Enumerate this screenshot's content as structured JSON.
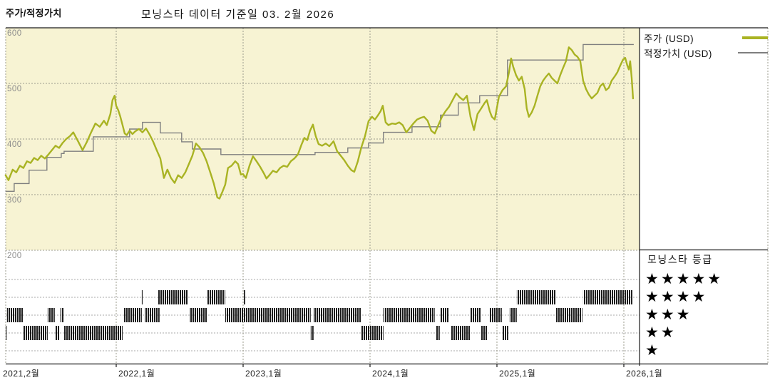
{
  "page": {
    "title_left": "주가/적정가치",
    "title_center": "모닝스타 데이터 기준일 03. 2월 2026"
  },
  "legend": {
    "items": [
      {
        "label": "주가 (USD)",
        "color": "#a9b323",
        "thickness": 4,
        "width": 36
      },
      {
        "label": "적정가치 (USD)",
        "color": "#7f7f7f",
        "thickness": 2,
        "width": 42
      }
    ]
  },
  "rating_legend": {
    "title": "모닝스타 등급",
    "star_char": "★",
    "rows": [
      5,
      4,
      3,
      2,
      1
    ]
  },
  "chart_data": {
    "type": "line",
    "title": "모닝스타 데이터 기준일 03. 2월 2026",
    "plot_bg": "#f7f3d3",
    "grid_color": "#9b9b8d",
    "x_axis": {
      "unit": "months_since_2021-02",
      "tick_labels": [
        "2021,2월",
        "2022,1월",
        "2023,1월",
        "2024,1월",
        "2025,1월",
        "2026,1월"
      ],
      "tick_months": [
        0,
        11,
        23,
        35,
        47,
        59
      ]
    },
    "y_axis": {
      "tick_labels": [
        "600",
        "500",
        "400",
        "300",
        "200"
      ],
      "tick_values": [
        600,
        500,
        400,
        300,
        200
      ],
      "visible_range": [
        200,
        600
      ]
    },
    "series": [
      {
        "name": "주가 (USD)",
        "type": "line",
        "color": "#a9b323",
        "points": [
          [
            0.54,
            335
          ],
          [
            0.81,
            326
          ],
          [
            1.21,
            345
          ],
          [
            1.55,
            340
          ],
          [
            1.89,
            352
          ],
          [
            2.22,
            348
          ],
          [
            2.56,
            360
          ],
          [
            2.9,
            357
          ],
          [
            3.24,
            366
          ],
          [
            3.57,
            362
          ],
          [
            3.91,
            370
          ],
          [
            4.25,
            365
          ],
          [
            4.58,
            372
          ],
          [
            4.92,
            380
          ],
          [
            5.26,
            388
          ],
          [
            5.6,
            384
          ],
          [
            5.93,
            393
          ],
          [
            6.27,
            400
          ],
          [
            6.61,
            405
          ],
          [
            6.94,
            412
          ],
          [
            7.42,
            395
          ],
          [
            7.82,
            380
          ],
          [
            8.23,
            395
          ],
          [
            8.63,
            412
          ],
          [
            9.03,
            428
          ],
          [
            9.44,
            422
          ],
          [
            9.84,
            433
          ],
          [
            10.11,
            425
          ],
          [
            10.45,
            445
          ],
          [
            10.65,
            470
          ],
          [
            10.85,
            478
          ],
          [
            10.99,
            460
          ],
          [
            11.19,
            452
          ],
          [
            11.39,
            440
          ],
          [
            11.6,
            425
          ],
          [
            11.8,
            410
          ],
          [
            12.0,
            407
          ],
          [
            12.27,
            415
          ],
          [
            12.54,
            409
          ],
          [
            12.81,
            414
          ],
          [
            13.15,
            418
          ],
          [
            13.48,
            412
          ],
          [
            13.82,
            419
          ],
          [
            14.16,
            408
          ],
          [
            14.5,
            395
          ],
          [
            14.83,
            380
          ],
          [
            15.17,
            365
          ],
          [
            15.51,
            330
          ],
          [
            15.84,
            345
          ],
          [
            16.18,
            330
          ],
          [
            16.52,
            321
          ],
          [
            16.85,
            335
          ],
          [
            17.19,
            330
          ],
          [
            17.53,
            340
          ],
          [
            17.87,
            355
          ],
          [
            18.2,
            370
          ],
          [
            18.54,
            392
          ],
          [
            18.88,
            385
          ],
          [
            19.21,
            375
          ],
          [
            19.55,
            360
          ],
          [
            19.89,
            340
          ],
          [
            20.23,
            320
          ],
          [
            20.56,
            295
          ],
          [
            20.77,
            293
          ],
          [
            21.04,
            305
          ],
          [
            21.31,
            318
          ],
          [
            21.57,
            348
          ],
          [
            21.91,
            352
          ],
          [
            22.25,
            360
          ],
          [
            22.52,
            355
          ],
          [
            22.79,
            336
          ],
          [
            22.99,
            337
          ],
          [
            23.26,
            330
          ],
          [
            23.6,
            352
          ],
          [
            23.93,
            369
          ],
          [
            24.27,
            360
          ],
          [
            24.61,
            350
          ],
          [
            24.94,
            339
          ],
          [
            25.21,
            329
          ],
          [
            25.48,
            335
          ],
          [
            25.82,
            343
          ],
          [
            26.16,
            340
          ],
          [
            26.49,
            348
          ],
          [
            26.83,
            352
          ],
          [
            27.17,
            350
          ],
          [
            27.51,
            360
          ],
          [
            27.84,
            365
          ],
          [
            28.18,
            372
          ],
          [
            28.52,
            390
          ],
          [
            28.79,
            402
          ],
          [
            29.06,
            398
          ],
          [
            29.33,
            415
          ],
          [
            29.6,
            426
          ],
          [
            29.87,
            405
          ],
          [
            30.13,
            391
          ],
          [
            30.47,
            388
          ],
          [
            30.81,
            392
          ],
          [
            31.15,
            387
          ],
          [
            31.55,
            396
          ],
          [
            31.89,
            378
          ],
          [
            32.23,
            370
          ],
          [
            32.56,
            362
          ],
          [
            32.9,
            352
          ],
          [
            33.24,
            344
          ],
          [
            33.51,
            341
          ],
          [
            33.85,
            360
          ],
          [
            34.18,
            385
          ],
          [
            34.52,
            405
          ],
          [
            34.86,
            432
          ],
          [
            35.19,
            440
          ],
          [
            35.46,
            435
          ],
          [
            35.73,
            442
          ],
          [
            36.0,
            450
          ],
          [
            36.21,
            460
          ],
          [
            36.48,
            430
          ],
          [
            36.74,
            425
          ],
          [
            37.08,
            428
          ],
          [
            37.42,
            427
          ],
          [
            37.76,
            430
          ],
          [
            38.09,
            425
          ],
          [
            38.43,
            412
          ],
          [
            38.77,
            420
          ],
          [
            39.1,
            428
          ],
          [
            39.44,
            435
          ],
          [
            39.78,
            438
          ],
          [
            40.11,
            440
          ],
          [
            40.45,
            433
          ],
          [
            40.79,
            415
          ],
          [
            41.12,
            410
          ],
          [
            41.46,
            425
          ],
          [
            41.8,
            440
          ],
          [
            42.14,
            450
          ],
          [
            42.47,
            458
          ],
          [
            42.81,
            470
          ],
          [
            43.15,
            482
          ],
          [
            43.48,
            475
          ],
          [
            43.82,
            470
          ],
          [
            44.16,
            478
          ],
          [
            44.5,
            440
          ],
          [
            44.83,
            416
          ],
          [
            45.17,
            445
          ],
          [
            45.51,
            455
          ],
          [
            45.84,
            465
          ],
          [
            46.05,
            470
          ],
          [
            46.32,
            450
          ],
          [
            46.52,
            440
          ],
          [
            46.79,
            435
          ],
          [
            47.19,
            476
          ],
          [
            47.53,
            488
          ],
          [
            47.87,
            495
          ],
          [
            48.14,
            520
          ],
          [
            48.34,
            545
          ],
          [
            48.54,
            530
          ],
          [
            48.81,
            515
          ],
          [
            49.08,
            505
          ],
          [
            49.35,
            512
          ],
          [
            49.62,
            490
          ],
          [
            49.82,
            455
          ],
          [
            50.02,
            440
          ],
          [
            50.29,
            448
          ],
          [
            50.56,
            460
          ],
          [
            50.83,
            478
          ],
          [
            51.1,
            495
          ],
          [
            51.37,
            505
          ],
          [
            51.64,
            512
          ],
          [
            51.91,
            518
          ],
          [
            52.18,
            510
          ],
          [
            52.45,
            505
          ],
          [
            52.72,
            500
          ],
          [
            52.99,
            515
          ],
          [
            53.26,
            528
          ],
          [
            53.53,
            540
          ],
          [
            53.8,
            565
          ],
          [
            54.07,
            560
          ],
          [
            54.34,
            552
          ],
          [
            54.61,
            548
          ],
          [
            54.88,
            540
          ],
          [
            55.15,
            505
          ],
          [
            55.42,
            490
          ],
          [
            55.69,
            480
          ],
          [
            55.96,
            473
          ],
          [
            56.23,
            478
          ],
          [
            56.5,
            483
          ],
          [
            56.77,
            495
          ],
          [
            57.04,
            500
          ],
          [
            57.31,
            488
          ],
          [
            57.58,
            492
          ],
          [
            57.85,
            505
          ],
          [
            58.12,
            512
          ],
          [
            58.39,
            520
          ],
          [
            58.66,
            532
          ],
          [
            58.93,
            543
          ],
          [
            59.13,
            546
          ],
          [
            59.33,
            532
          ],
          [
            59.47,
            525
          ],
          [
            59.6,
            540
          ],
          [
            59.74,
            510
          ],
          [
            59.87,
            473
          ]
        ]
      },
      {
        "name": "적정가치 (USD)",
        "type": "step",
        "color": "#7f7f7f",
        "points": [
          [
            0.54,
            306
          ],
          [
            1.35,
            320
          ],
          [
            2.76,
            344
          ],
          [
            4.45,
            367
          ],
          [
            5.8,
            374
          ],
          [
            6.07,
            378
          ],
          [
            8.83,
            404
          ],
          [
            12.27,
            418
          ],
          [
            13.48,
            430
          ],
          [
            15.17,
            411
          ],
          [
            17.19,
            395
          ],
          [
            18.2,
            382
          ],
          [
            20.9,
            372
          ],
          [
            29.8,
            376
          ],
          [
            32.9,
            384
          ],
          [
            34.86,
            393
          ],
          [
            36.27,
            412
          ],
          [
            38.97,
            422
          ],
          [
            41.66,
            443
          ],
          [
            43.35,
            465
          ],
          [
            45.37,
            478
          ],
          [
            48.0,
            542
          ],
          [
            55.15,
            570
          ],
          [
            59.94,
            570
          ]
        ]
      }
    ],
    "rating_timeline": {
      "note": "star-rating bands, month ranges since 2021-02",
      "levels": {
        "5": [],
        "4": [
          [
            13.42,
            13.55
          ],
          [
            14.97,
            17.8
          ],
          [
            19.62,
            21.31
          ],
          [
            23.06,
            23.19
          ],
          [
            48.88,
            52.59
          ],
          [
            55.15,
            59.8
          ]
        ],
        "3": [
          [
            0.67,
            2.22
          ],
          [
            4.52,
            5.19
          ],
          [
            5.73,
            6.07
          ],
          [
            11.73,
            13.42
          ],
          [
            13.69,
            15.1
          ],
          [
            17.93,
            19.62
          ],
          [
            21.31,
            29.39
          ],
          [
            29.66,
            34.18
          ],
          [
            36.27,
            41.12
          ],
          [
            41.66,
            42.47
          ],
          [
            44.5,
            45.51
          ],
          [
            46.32,
            47.46
          ],
          [
            48.21,
            48.88
          ],
          [
            52.59,
            55.08
          ]
        ],
        "2": [
          [
            0.54,
            0.67
          ],
          [
            2.22,
            4.52
          ],
          [
            5.26,
            5.66
          ],
          [
            6.07,
            11.6
          ],
          [
            29.39,
            29.66
          ],
          [
            34.18,
            36.27
          ],
          [
            41.26,
            41.6
          ],
          [
            42.68,
            44.5
          ],
          [
            45.51,
            46.12
          ],
          [
            47.53,
            48.07
          ]
        ],
        "1": []
      }
    }
  }
}
